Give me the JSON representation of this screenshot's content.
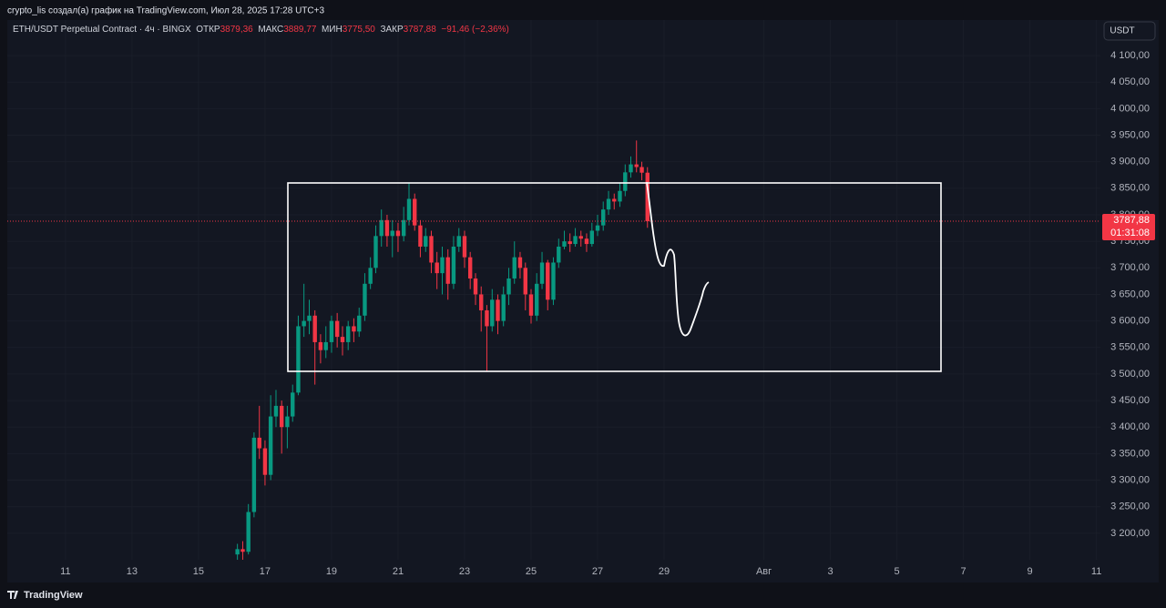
{
  "header": {
    "attribution": "crypto_lis создал(а) график на TradingView.com, Июл 28, 2025 17:28 UTC+3",
    "footer_logo": "TradingView",
    "currency_button": "USDT"
  },
  "chart_data": {
    "type": "candlestick",
    "title": "ETH/USDT Perpetual Contract · 4ч · BINGX",
    "ohlc_header": [
      {
        "label": "ОТКР",
        "value": "3879,36"
      },
      {
        "label": "МАКС",
        "value": "3889,77"
      },
      {
        "label": "МИН",
        "value": "3775,50"
      },
      {
        "label": "ЗАКР",
        "value": "3787,88"
      }
    ],
    "change_label": "−91,46 (−2,36%)",
    "last_price_label": "3787,88",
    "countdown": "01:31:08",
    "up_color": "#089981",
    "down_color": "#f23645",
    "grid": true,
    "x": [
      16.17,
      16.33,
      16.5,
      16.67,
      16.83,
      17,
      17.17,
      17.33,
      17.5,
      17.67,
      17.83,
      18,
      18.17,
      18.33,
      18.5,
      18.67,
      18.83,
      19,
      19.17,
      19.33,
      19.5,
      19.67,
      19.83,
      20,
      20.17,
      20.33,
      20.5,
      20.67,
      20.83,
      21,
      21.17,
      21.33,
      21.5,
      21.67,
      21.83,
      22,
      22.17,
      22.33,
      22.5,
      22.67,
      22.83,
      23,
      23.17,
      23.33,
      23.5,
      23.67,
      23.83,
      24,
      24.17,
      24.33,
      24.5,
      24.67,
      24.83,
      25,
      25.17,
      25.33,
      25.5,
      25.67,
      25.83,
      26,
      26.17,
      26.33,
      26.5,
      26.67,
      26.83,
      27,
      27.17,
      27.33,
      27.5,
      27.67,
      27.83,
      28,
      28.17,
      28.33,
      28.5
    ],
    "open": [
      3160,
      3170,
      3165,
      3240,
      3380,
      3360,
      3310,
      3420,
      3440,
      3400,
      3420,
      3465,
      3590,
      3600,
      3610,
      3560,
      3545,
      3560,
      3600,
      3570,
      3560,
      3590,
      3580,
      3610,
      3670,
      3700,
      3760,
      3790,
      3760,
      3770,
      3760,
      3790,
      3830,
      3780,
      3740,
      3760,
      3710,
      3690,
      3720,
      3670,
      3740,
      3760,
      3720,
      3680,
      3650,
      3620,
      3590,
      3640,
      3600,
      3650,
      3680,
      3720,
      3700,
      3650,
      3610,
      3670,
      3710,
      3640,
      3710,
      3740,
      3750,
      3745,
      3760,
      3755,
      3745,
      3770,
      3780,
      3810,
      3830,
      3825,
      3845,
      3880,
      3895,
      3890,
      3879.36
    ],
    "high": [
      3180,
      3185,
      3255,
      3390,
      3440,
      3375,
      3460,
      3470,
      3450,
      3440,
      3480,
      3610,
      3670,
      3640,
      3620,
      3575,
      3590,
      3610,
      3615,
      3590,
      3600,
      3605,
      3625,
      3690,
      3720,
      3780,
      3810,
      3800,
      3790,
      3785,
      3815,
      3860,
      3840,
      3790,
      3775,
      3770,
      3730,
      3740,
      3735,
      3760,
      3775,
      3770,
      3730,
      3690,
      3665,
      3630,
      3660,
      3650,
      3665,
      3700,
      3750,
      3730,
      3710,
      3660,
      3690,
      3730,
      3715,
      3720,
      3755,
      3770,
      3765,
      3775,
      3770,
      3765,
      3785,
      3800,
      3825,
      3845,
      3840,
      3860,
      3895,
      3910,
      3940,
      3900,
      3889.77
    ],
    "low": [
      3150,
      3150,
      3160,
      3230,
      3340,
      3290,
      3300,
      3400,
      3350,
      3360,
      3410,
      3460,
      3570,
      3575,
      3480,
      3520,
      3530,
      3540,
      3550,
      3535,
      3545,
      3560,
      3570,
      3600,
      3660,
      3690,
      3740,
      3740,
      3720,
      3730,
      3750,
      3780,
      3770,
      3720,
      3730,
      3690,
      3660,
      3650,
      3640,
      3660,
      3730,
      3700,
      3660,
      3630,
      3580,
      3505,
      3580,
      3575,
      3590,
      3630,
      3670,
      3680,
      3620,
      3595,
      3600,
      3660,
      3620,
      3630,
      3700,
      3735,
      3730,
      3740,
      3740,
      3730,
      3740,
      3760,
      3770,
      3800,
      3810,
      3815,
      3835,
      3870,
      3880,
      3865,
      3775.5
    ],
    "close": [
      3170,
      3165,
      3240,
      3380,
      3360,
      3310,
      3420,
      3440,
      3400,
      3420,
      3465,
      3590,
      3600,
      3610,
      3560,
      3545,
      3560,
      3600,
      3570,
      3560,
      3590,
      3580,
      3610,
      3670,
      3700,
      3760,
      3790,
      3760,
      3770,
      3760,
      3790,
      3830,
      3780,
      3740,
      3760,
      3710,
      3690,
      3720,
      3670,
      3740,
      3760,
      3720,
      3680,
      3650,
      3620,
      3590,
      3640,
      3600,
      3650,
      3680,
      3720,
      3700,
      3650,
      3610,
      3670,
      3710,
      3640,
      3710,
      3740,
      3750,
      3745,
      3760,
      3755,
      3745,
      3770,
      3780,
      3810,
      3830,
      3825,
      3845,
      3880,
      3895,
      3890,
      3879.36,
      3787.88
    ],
    "ylim": [
      3150,
      4167
    ],
    "yticks": [
      {
        "value": 4100,
        "label": "4 100,00"
      },
      {
        "value": 4050,
        "label": "4 050,00"
      },
      {
        "value": 4000,
        "label": "4 000,00"
      },
      {
        "value": 3950,
        "label": "3 950,00"
      },
      {
        "value": 3900,
        "label": "3 900,00"
      },
      {
        "value": 3850,
        "label": "3 850,00"
      },
      {
        "value": 3800,
        "label": "3 800,00"
      },
      {
        "value": 3750,
        "label": "3 750,00"
      },
      {
        "value": 3700,
        "label": "3 700,00"
      },
      {
        "value": 3650,
        "label": "3 650,00"
      },
      {
        "value": 3600,
        "label": "3 600,00"
      },
      {
        "value": 3550,
        "label": "3 550,00"
      },
      {
        "value": 3500,
        "label": "3 500,00"
      },
      {
        "value": 3450,
        "label": "3 450,00"
      },
      {
        "value": 3400,
        "label": "3 400,00"
      },
      {
        "value": 3350,
        "label": "3 350,00"
      },
      {
        "value": 3300,
        "label": "3 300,00"
      },
      {
        "value": 3250,
        "label": "3 250,00"
      },
      {
        "value": 3200,
        "label": "3 200,00"
      }
    ],
    "xlim": [
      9.25,
      42.12
    ],
    "xticks": [
      11,
      13,
      15,
      17,
      19,
      21,
      23,
      25,
      27,
      29,
      {
        "value": 32,
        "label": "Авг"
      },
      {
        "value": 34,
        "label": "3"
      },
      {
        "value": 36,
        "label": "5"
      },
      {
        "value": 38,
        "label": "7"
      },
      {
        "value": 40,
        "label": "9"
      },
      {
        "value": 42,
        "label": "11"
      }
    ]
  }
}
